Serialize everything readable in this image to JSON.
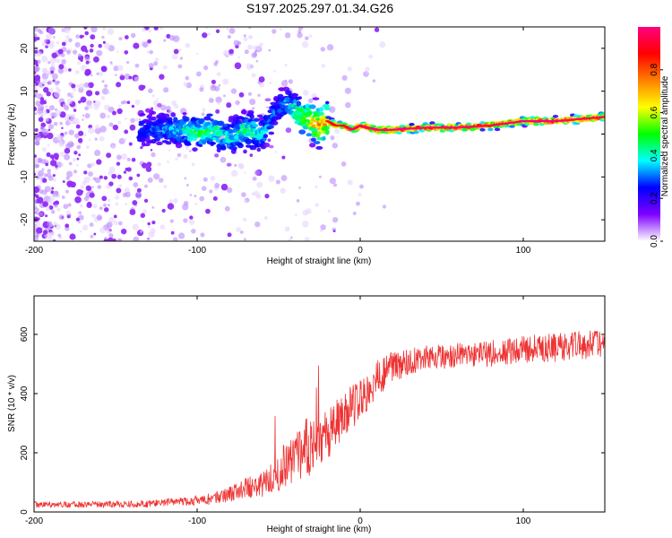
{
  "chart_data": [
    {
      "type": "heatmap",
      "title": "S197.2025.297.01.34.G26",
      "xlabel": "Height of straight line (km)",
      "ylabel": "Frequency (Hz)",
      "xlim": [
        -200,
        150
      ],
      "ylim": [
        -25,
        25
      ],
      "xticks": [
        -200,
        -100,
        0,
        100
      ],
      "yticks": [
        -20,
        -10,
        0,
        10,
        20
      ],
      "colorbar": {
        "label": "Normalized spectral amplitude",
        "range": [
          0,
          1
        ],
        "ticks": [
          "0.0",
          "0.2",
          "0.4",
          "0.6",
          "0.8"
        ],
        "tick_values": [
          0,
          0.2,
          0.4,
          0.6,
          0.8
        ],
        "colors": [
          "#ffffff",
          "#7f00ff",
          "#0000ff",
          "#00ffff",
          "#00ff00",
          "#ffff00",
          "#ff8000",
          "#ff0000",
          "#ff0080"
        ]
      },
      "ridge": {
        "x": [
          -130,
          -110,
          -100,
          -90,
          -80,
          -70,
          -60,
          -50,
          -45,
          -40,
          -35,
          -30,
          -25,
          -20,
          -15,
          -10,
          -5,
          0,
          10,
          20,
          40,
          60,
          80,
          100,
          120,
          150
        ],
        "freq": [
          1,
          1,
          0,
          1,
          -1,
          1,
          0,
          6,
          7,
          5,
          4,
          3,
          2,
          3,
          2,
          2,
          1,
          2,
          1,
          1,
          1.5,
          1.5,
          2,
          3,
          3,
          4
        ],
        "amplitude": [
          0.3,
          0.4,
          0.5,
          0.5,
          0.4,
          0.5,
          0.4,
          0.3,
          0.4,
          0.5,
          0.6,
          0.7,
          0.8,
          0.8,
          0.85,
          0.85,
          0.9,
          0.9,
          0.95,
          0.95,
          0.95,
          0.95,
          0.9,
          0.95,
          0.95,
          0.9
        ]
      }
    },
    {
      "type": "line",
      "title": "",
      "xlabel": "Height of straight line (km)",
      "ylabel": "SNR (10 * v/v)",
      "xlim": [
        -200,
        150
      ],
      "ylim": [
        0,
        730
      ],
      "xticks": [
        -200,
        -100,
        0,
        100
      ],
      "yticks": [
        0,
        200,
        400,
        600
      ],
      "series": [
        {
          "name": "SNR",
          "color": "#ee3333",
          "envelope_x": [
            -200,
            -160,
            -130,
            -110,
            -90,
            -80,
            -70,
            -60,
            -50,
            -40,
            -30,
            -20,
            -10,
            0,
            10,
            20,
            30,
            40,
            60,
            80,
            100,
            120,
            150
          ],
          "mean": [
            25,
            25,
            28,
            35,
            45,
            60,
            80,
            100,
            140,
            180,
            230,
            250,
            330,
            380,
            450,
            490,
            510,
            520,
            530,
            535,
            550,
            555,
            570
          ],
          "spread": [
            15,
            15,
            18,
            22,
            30,
            40,
            50,
            70,
            100,
            140,
            150,
            140,
            110,
            100,
            90,
            80,
            70,
            60,
            60,
            65,
            70,
            70,
            70
          ]
        }
      ]
    }
  ]
}
